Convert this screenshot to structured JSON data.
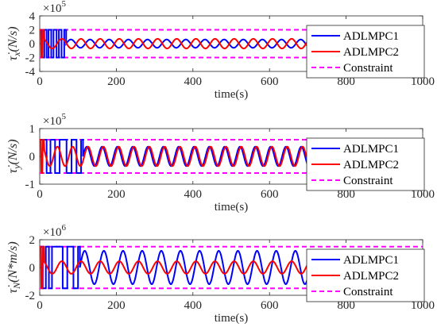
{
  "chart_data": [
    {
      "type": "line",
      "ylabel": "τ̇x(N/s)",
      "xlabel": "time(s)",
      "y_exponent": "5",
      "xlim": [
        0,
        1000
      ],
      "ylim": [
        -4,
        4
      ],
      "x_ticks": [
        "0",
        "200",
        "400",
        "600",
        "800",
        "1000"
      ],
      "y_ticks": [
        "-4",
        "-2",
        "0",
        "2",
        "4"
      ],
      "legend": [
        "ADLMPC1",
        "ADLMPC2",
        "Constraint"
      ],
      "legend_position": "right",
      "series": [
        {
          "name": "ADLMPC1",
          "color": "#0000ff",
          "description": "bang-bang switching between ±2 for t < 65, then tiny oscillation near 0 (mostly hidden)",
          "switch_times": [
            0,
            6,
            12,
            18,
            23,
            30,
            36,
            44,
            50,
            57,
            64
          ],
          "amplitude_after": 0.3,
          "period": 50
        },
        {
          "name": "ADLMPC2",
          "color": "#ff0000",
          "description": "saturation at ±2 early, then sinusoidal oscillation",
          "amplitude": 0.7,
          "period": 50,
          "offset": 0
        },
        {
          "name": "Constraint",
          "color": "#ff00ff",
          "style": "dashed",
          "values": [
            2,
            -2
          ]
        }
      ]
    },
    {
      "type": "line",
      "ylabel": "τ̇y(N/s)",
      "xlabel": "time(s)",
      "y_exponent": "5",
      "xlim": [
        0,
        1000
      ],
      "ylim": [
        -1,
        1
      ],
      "x_ticks": [
        "0",
        "200",
        "400",
        "600",
        "800",
        "1000"
      ],
      "y_ticks": [
        "-1",
        "0",
        "1"
      ],
      "legend": [
        "ADLMPC1",
        "ADLMPC2",
        "Constraint"
      ],
      "legend_position": "right",
      "series": [
        {
          "name": "ADLMPC1",
          "color": "#0000ff",
          "description": "bang-bang between ±0.6 until t≈110, then sinusoid",
          "switch_times": [
            0,
            18,
            28,
            40,
            52,
            70,
            83,
            96,
            108
          ],
          "amplitude_after": 0.35,
          "period": 40
        },
        {
          "name": "ADLMPC2",
          "color": "#ff0000",
          "description": "early transients then sinusoid",
          "amplitude": 0.35,
          "period": 40,
          "offset": 0
        },
        {
          "name": "Constraint",
          "color": "#ff00ff",
          "style": "dashed",
          "values": [
            0.6,
            -0.6
          ]
        }
      ]
    },
    {
      "type": "line",
      "ylabel": "τ̇N(N*m/s)",
      "xlabel": "time(s)",
      "y_exponent": "6",
      "xlim": [
        0,
        1000
      ],
      "ylim": [
        -2,
        2
      ],
      "x_ticks": [
        "0",
        "200",
        "400",
        "600",
        "800",
        "1000"
      ],
      "y_ticks": [
        "-2",
        "0",
        "2"
      ],
      "legend": [
        "ADLMPC1",
        "ADLMPC2",
        "Constraint"
      ],
      "legend_position": "right",
      "series": [
        {
          "name": "ADLMPC1",
          "color": "#0000ff",
          "description": "bang-bang between ±1.5 until t≈100, then sinusoid",
          "switch_times": [
            0,
            8,
            16,
            24,
            32,
            60,
            72,
            88,
            100
          ],
          "amplitude_after": 0.6,
          "period": 50
        },
        {
          "name": "ADLMPC2",
          "color": "#ff0000",
          "description": "early spikes then sinusoid",
          "amplitude": 0.45,
          "period": 50,
          "offset": 0
        },
        {
          "name": "Constraint",
          "color": "#ff00ff",
          "style": "dashed",
          "values": [
            1.5,
            -1.5
          ]
        }
      ]
    }
  ]
}
